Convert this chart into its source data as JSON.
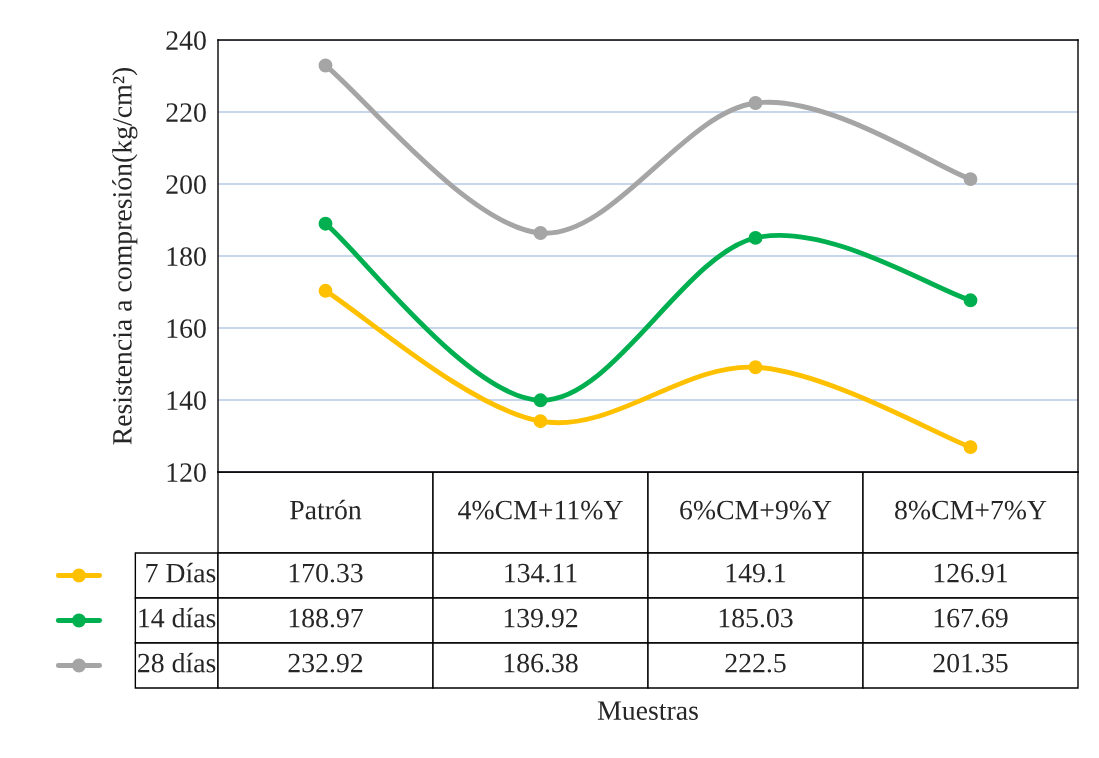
{
  "chart_data": {
    "type": "line",
    "annotations": [
      "Muestras"
    ],
    "ylabel": "Resistencia a compresión(kg/cm²)",
    "categories": [
      "Patrón",
      "4%CM+11%Y",
      "6%CM+9%Y",
      "8%CM+7%Y"
    ],
    "series": [
      {
        "name": "7 Días",
        "color": "#ffc000",
        "values": [
          170.33,
          134.11,
          149.1,
          126.91
        ]
      },
      {
        "name": "14 días",
        "color": "#00b050",
        "values": [
          188.97,
          139.92,
          185.03,
          167.69
        ]
      },
      {
        "name": "28 días",
        "color": "#a5a5a5",
        "values": [
          232.92,
          186.38,
          222.5,
          201.35
        ]
      }
    ],
    "ylim": [
      120,
      240
    ],
    "yticks": [
      120,
      140,
      160,
      180,
      200,
      220,
      240
    ],
    "grid": "y",
    "marker": "circle",
    "line_style": "solid",
    "data_labels": true,
    "legend": "bottom"
  }
}
